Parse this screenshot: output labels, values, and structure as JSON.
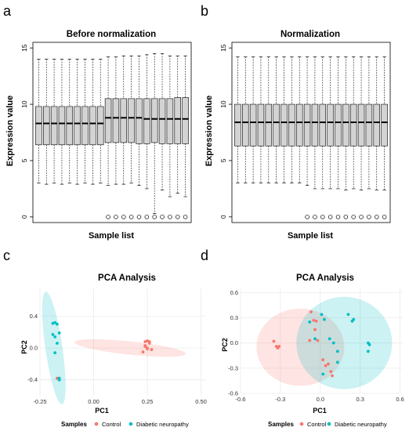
{
  "panels": {
    "a": {
      "label": "a"
    },
    "b": {
      "label": "b"
    },
    "c": {
      "label": "c"
    },
    "d": {
      "label": "d"
    }
  },
  "chart_data": [
    {
      "id": "a",
      "type": "boxplot",
      "title": "Before normalization",
      "xlabel": "Sample list",
      "ylabel": "Expression value",
      "ylim": [
        -0.5,
        15.5
      ],
      "yticks": [
        0,
        5,
        10,
        15
      ],
      "box_color": "#d3d3d3",
      "boxes": [
        {
          "low": 3.0,
          "q1": 6.4,
          "median": 8.3,
          "q3": 9.8,
          "high": 14.0,
          "outlier": null
        },
        {
          "low": 2.9,
          "q1": 6.4,
          "median": 8.3,
          "q3": 9.8,
          "high": 14.0,
          "outlier": null
        },
        {
          "low": 3.0,
          "q1": 6.4,
          "median": 8.3,
          "q3": 9.8,
          "high": 14.0,
          "outlier": null
        },
        {
          "low": 2.9,
          "q1": 6.4,
          "median": 8.3,
          "q3": 9.8,
          "high": 14.0,
          "outlier": null
        },
        {
          "low": 3.0,
          "q1": 6.4,
          "median": 8.3,
          "q3": 9.8,
          "high": 14.0,
          "outlier": null
        },
        {
          "low": 2.9,
          "q1": 6.4,
          "median": 8.3,
          "q3": 9.8,
          "high": 14.0,
          "outlier": null
        },
        {
          "low": 3.0,
          "q1": 6.4,
          "median": 8.3,
          "q3": 9.8,
          "high": 14.0,
          "outlier": null
        },
        {
          "low": 2.9,
          "q1": 6.4,
          "median": 8.3,
          "q3": 9.8,
          "high": 14.0,
          "outlier": null
        },
        {
          "low": 3.0,
          "q1": 6.4,
          "median": 8.3,
          "q3": 9.8,
          "high": 14.0,
          "outlier": null
        },
        {
          "low": 2.8,
          "q1": 6.6,
          "median": 8.8,
          "q3": 10.5,
          "high": 14.2,
          "outlier": 0
        },
        {
          "low": 2.9,
          "q1": 6.6,
          "median": 8.8,
          "q3": 10.5,
          "high": 14.2,
          "outlier": 0
        },
        {
          "low": 2.9,
          "q1": 6.6,
          "median": 8.8,
          "q3": 10.5,
          "high": 14.3,
          "outlier": 0
        },
        {
          "low": 3.0,
          "q1": 6.6,
          "median": 8.8,
          "q3": 10.5,
          "high": 14.3,
          "outlier": 0
        },
        {
          "low": 2.8,
          "q1": 6.5,
          "median": 8.8,
          "q3": 10.5,
          "high": 14.3,
          "outlier": 0
        },
        {
          "low": 2.5,
          "q1": 6.5,
          "median": 8.7,
          "q3": 10.5,
          "high": 14.4,
          "outlier": 0
        },
        {
          "low": 0.3,
          "q1": 6.6,
          "median": 8.7,
          "q3": 10.5,
          "high": 14.5,
          "outlier": 0
        },
        {
          "low": 2.4,
          "q1": 6.5,
          "median": 8.7,
          "q3": 10.5,
          "high": 14.5,
          "outlier": 0
        },
        {
          "low": 1.8,
          "q1": 6.5,
          "median": 8.7,
          "q3": 10.5,
          "high": 14.3,
          "outlier": 0
        },
        {
          "low": 2.1,
          "q1": 6.5,
          "median": 8.7,
          "q3": 10.6,
          "high": 14.3,
          "outlier": 0
        },
        {
          "low": 1.8,
          "q1": 6.5,
          "median": 8.7,
          "q3": 10.6,
          "high": 14.3,
          "outlier": 0
        }
      ]
    },
    {
      "id": "b",
      "type": "boxplot",
      "title": "Normalization",
      "xlabel": "Sample list",
      "ylabel": "Expression value",
      "ylim": [
        -0.5,
        15.5
      ],
      "yticks": [
        0,
        5,
        10,
        15
      ],
      "box_color": "#d3d3d3",
      "boxes": [
        {
          "low": 3.0,
          "q1": 6.3,
          "median": 8.4,
          "q3": 10.0,
          "high": 14.2,
          "outlier": null
        },
        {
          "low": 3.0,
          "q1": 6.3,
          "median": 8.4,
          "q3": 10.0,
          "high": 14.2,
          "outlier": null
        },
        {
          "low": 3.0,
          "q1": 6.3,
          "median": 8.4,
          "q3": 10.0,
          "high": 14.2,
          "outlier": null
        },
        {
          "low": 3.0,
          "q1": 6.3,
          "median": 8.4,
          "q3": 10.0,
          "high": 14.2,
          "outlier": null
        },
        {
          "low": 3.0,
          "q1": 6.3,
          "median": 8.4,
          "q3": 10.0,
          "high": 14.2,
          "outlier": null
        },
        {
          "low": 3.0,
          "q1": 6.3,
          "median": 8.4,
          "q3": 10.0,
          "high": 14.2,
          "outlier": null
        },
        {
          "low": 3.0,
          "q1": 6.3,
          "median": 8.4,
          "q3": 10.0,
          "high": 14.2,
          "outlier": null
        },
        {
          "low": 3.0,
          "q1": 6.3,
          "median": 8.4,
          "q3": 10.0,
          "high": 14.2,
          "outlier": null
        },
        {
          "low": 3.0,
          "q1": 6.3,
          "median": 8.4,
          "q3": 10.0,
          "high": 14.2,
          "outlier": null
        },
        {
          "low": 2.8,
          "q1": 6.3,
          "median": 8.4,
          "q3": 10.0,
          "high": 14.2,
          "outlier": 0
        },
        {
          "low": 2.5,
          "q1": 6.3,
          "median": 8.4,
          "q3": 10.0,
          "high": 14.2,
          "outlier": 0
        },
        {
          "low": 2.5,
          "q1": 6.3,
          "median": 8.4,
          "q3": 10.0,
          "high": 14.2,
          "outlier": 0
        },
        {
          "low": 2.5,
          "q1": 6.3,
          "median": 8.4,
          "q3": 10.0,
          "high": 14.2,
          "outlier": 0
        },
        {
          "low": 2.5,
          "q1": 6.3,
          "median": 8.4,
          "q3": 10.0,
          "high": 14.2,
          "outlier": 0
        },
        {
          "low": 2.4,
          "q1": 6.3,
          "median": 8.4,
          "q3": 10.0,
          "high": 14.2,
          "outlier": 0
        },
        {
          "low": 2.5,
          "q1": 6.3,
          "median": 8.4,
          "q3": 10.0,
          "high": 14.2,
          "outlier": 0
        },
        {
          "low": 2.4,
          "q1": 6.3,
          "median": 8.4,
          "q3": 10.0,
          "high": 14.2,
          "outlier": 0
        },
        {
          "low": 2.5,
          "q1": 6.3,
          "median": 8.4,
          "q3": 10.0,
          "high": 14.2,
          "outlier": 0
        },
        {
          "low": 2.4,
          "q1": 6.3,
          "median": 8.4,
          "q3": 10.0,
          "high": 14.2,
          "outlier": 0
        },
        {
          "low": 2.4,
          "q1": 6.3,
          "median": 8.4,
          "q3": 10.0,
          "high": 14.2,
          "outlier": 0
        }
      ]
    },
    {
      "id": "c",
      "type": "scatter",
      "title": "PCA Analysis",
      "xlabel": "PC1",
      "ylabel": "PC2",
      "xlim": [
        -0.25,
        0.52
      ],
      "ylim": [
        -0.6,
        0.75
      ],
      "xticks": [
        -0.25,
        0.0,
        0.25,
        0.5
      ],
      "xtick_labels": [
        "-0.25",
        "0.00",
        "0.25",
        "0.50"
      ],
      "yticks": [
        -0.4,
        0.0,
        0.4
      ],
      "ytick_labels": [
        "-0.4",
        "0.0",
        "0.4"
      ],
      "grid": true,
      "series": [
        {
          "name": "Control",
          "color": "#f8766d",
          "x": [
            0.24,
            0.25,
            0.26,
            0.24,
            0.25,
            0.27,
            0.23,
            0.26,
            0.24,
            0.25,
            -0.17
          ],
          "y": [
            0.08,
            0.09,
            0.06,
            0.02,
            0.0,
            -0.02,
            -0.05,
            0.08,
            0.03,
            -0.01,
            -0.38
          ],
          "ellipse": {
            "cx": 0.17,
            "cy": 0.0,
            "rx": 0.27,
            "ry": 0.08,
            "angle_deg": -17
          }
        },
        {
          "name": "Diabetic neuropathy",
          "color": "#00bfc4",
          "x": [
            -0.19,
            -0.18,
            -0.17,
            -0.19,
            -0.18,
            -0.16,
            -0.17,
            -0.18,
            -0.16,
            -0.16
          ],
          "y": [
            0.31,
            0.32,
            0.3,
            0.17,
            0.14,
            0.19,
            0.06,
            -0.06,
            -0.38,
            -0.4
          ],
          "ellipse": {
            "cx": -0.185,
            "cy": 0.0,
            "rx": 0.04,
            "ry": 0.71,
            "angle_deg": 3
          }
        }
      ],
      "legend": {
        "title": "Samples",
        "position": "bottom"
      }
    },
    {
      "id": "d",
      "type": "scatter",
      "title": "PCA Analysis",
      "xlabel": "PC1",
      "ylabel": "PC2",
      "xlim": [
        -0.6,
        0.62
      ],
      "ylim": [
        -0.6,
        0.65
      ],
      "xticks": [
        -0.6,
        -0.3,
        0.0,
        0.3,
        0.6
      ],
      "xtick_labels": [
        "-0.6",
        "-0.3",
        "0.0",
        "0.3",
        "0.6"
      ],
      "yticks": [
        -0.6,
        -0.3,
        0.0,
        0.3,
        0.6
      ],
      "ytick_labels": [
        "-0.6",
        "-0.3",
        "0.0",
        "0.3",
        "0.6"
      ],
      "grid": true,
      "series": [
        {
          "name": "Control",
          "color": "#f8766d",
          "x": [
            -0.35,
            -0.33,
            -0.32,
            -0.31,
            -0.08,
            -0.07,
            -0.05,
            -0.04,
            -0.02,
            0.02,
            0.04,
            0.06,
            0.09,
            0.08,
            -0.03
          ],
          "y": [
            0.02,
            -0.04,
            -0.06,
            -0.04,
            0.03,
            0.37,
            0.27,
            0.16,
            0.03,
            -0.2,
            -0.27,
            -0.25,
            -0.39,
            -0.34,
            0.26
          ],
          "ellipse": {
            "cx": -0.15,
            "cy": -0.05,
            "rx": 0.33,
            "ry": 0.46,
            "angle_deg": 0
          }
        },
        {
          "name": "Diabetic neuropathy",
          "color": "#00bfc4",
          "x": [
            -0.08,
            0.03,
            0.01,
            -0.04,
            0.07,
            0.1,
            0.13,
            0.13,
            0.21,
            0.25,
            0.24,
            0.36,
            0.37,
            0.36,
            0.02
          ],
          "y": [
            0.25,
            0.28,
            0.34,
            0.05,
            0.05,
            0.0,
            -0.1,
            -0.23,
            0.34,
            0.28,
            0.26,
            0.0,
            -0.02,
            -0.1,
            -0.37
          ],
          "ellipse": {
            "cx": 0.18,
            "cy": 0.0,
            "rx": 0.36,
            "ry": 0.55,
            "angle_deg": 0
          }
        }
      ],
      "legend": {
        "title": "Samples",
        "position": "bottom"
      }
    }
  ]
}
